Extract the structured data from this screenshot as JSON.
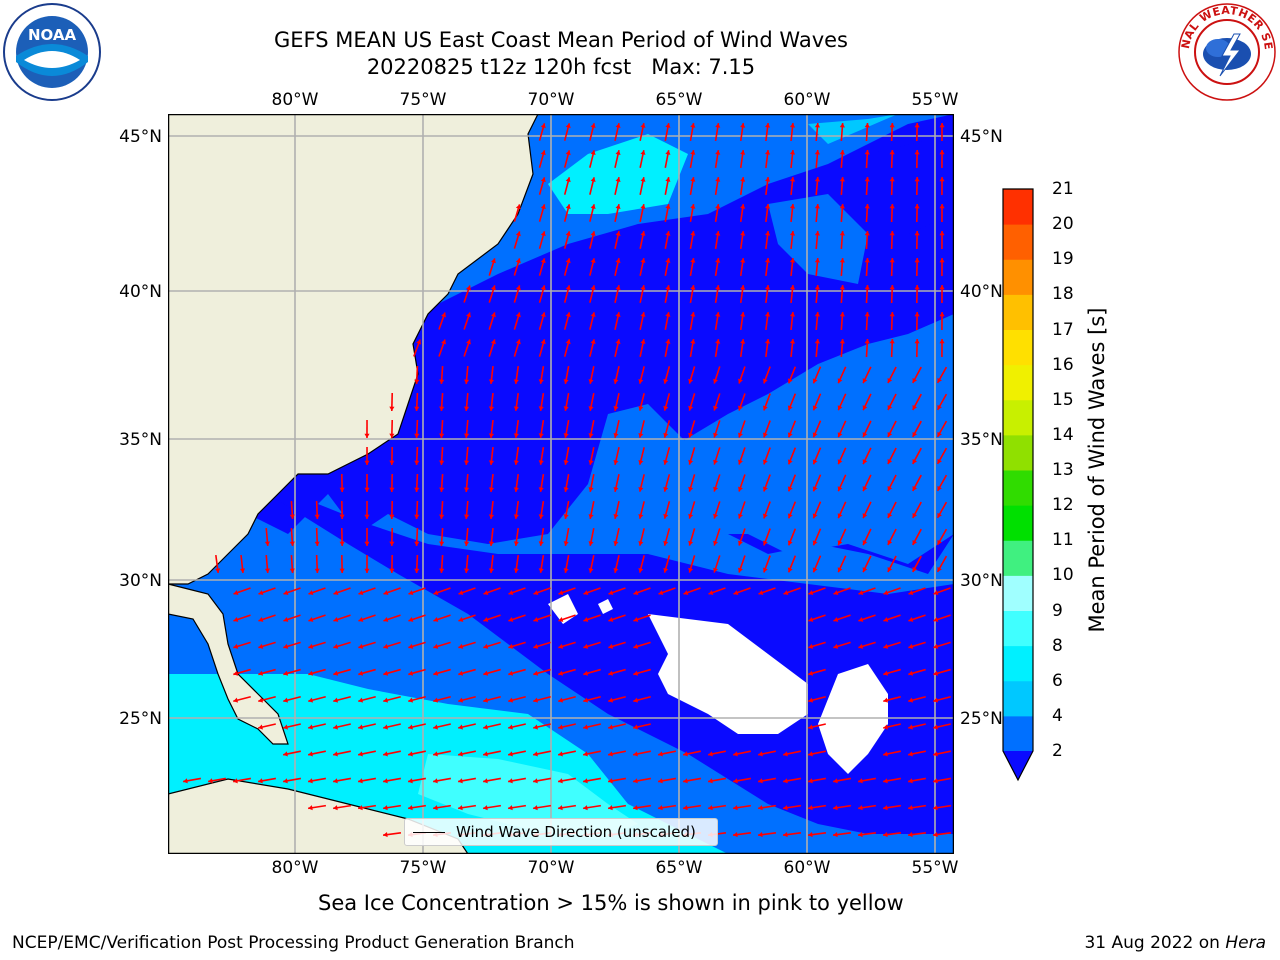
{
  "title": {
    "line1": "GEFS MEAN US East Coast Mean Period of Wind Waves",
    "line2": "20220825 t12z 120h fcst   Max: 7.15"
  },
  "map": {
    "lon_labels": [
      "80°W",
      "75°W",
      "70°W",
      "65°W",
      "60°W",
      "55°W"
    ],
    "lat_labels": [
      "45°N",
      "40°N",
      "35°N",
      "30°N",
      "25°N"
    ],
    "legend_label": "Wind Wave Direction (unscaled)",
    "land_color": "#efefdc",
    "mask_color": "#ffffff",
    "arrow_color": "#ff0000",
    "grid_color": "#b0b0b0"
  },
  "colorbar": {
    "label": "Mean Period of Wind Waves [s]",
    "ticks": [
      "2",
      "4",
      "6",
      "8",
      "9",
      "10",
      "11",
      "12",
      "13",
      "14",
      "15",
      "16",
      "17",
      "18",
      "19",
      "20",
      "21"
    ],
    "colors": [
      "#0a0aff",
      "#0070ff",
      "#00c8ff",
      "#00f0ff",
      "#40ffff",
      "#a0ffff",
      "#40f080",
      "#00e000",
      "#30dc00",
      "#90e000",
      "#c8f000",
      "#f0f000",
      "#ffe000",
      "#ffc000",
      "#ff9000",
      "#ff6000",
      "#ff3000",
      "#ff0000"
    ]
  },
  "note": "Sea Ice Concentration > 15% is shown in pink to yellow",
  "footer": {
    "left": "NCEP/EMC/Verification Post Processing Product Generation Branch",
    "right_date": "31 Aug 2022 on ",
    "right_host": "Hera"
  },
  "logos": {
    "noaa": "NOAA",
    "nws": "NATIONAL WEATHER SERVICE"
  }
}
